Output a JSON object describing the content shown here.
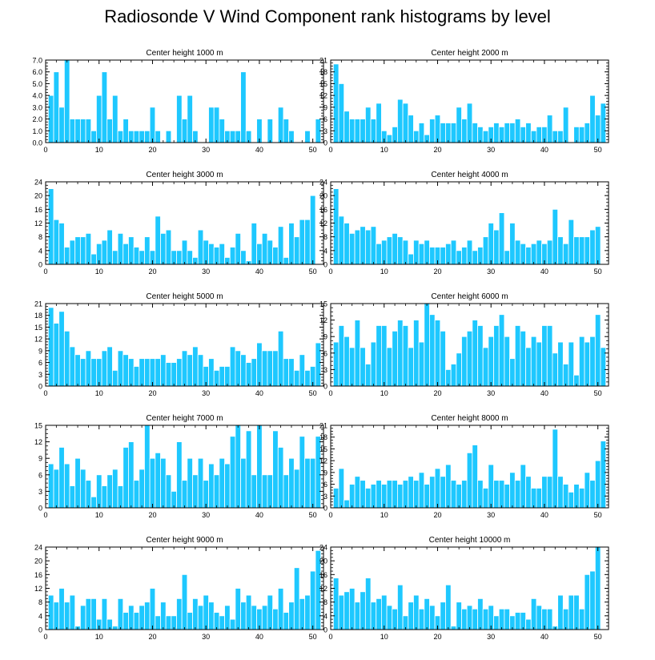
{
  "title": "Radiosonde V Wind Component rank histograms by level",
  "colors": {
    "bar": "#1ec8ff",
    "bar_edge": "#ffffff",
    "axis": "#000000"
  },
  "chart_data": [
    {
      "type": "bar",
      "title": "Center height 1000 m",
      "x": [
        1,
        2,
        3,
        4,
        5,
        6,
        7,
        8,
        9,
        10,
        11,
        12,
        13,
        14,
        15,
        16,
        17,
        18,
        19,
        20,
        21,
        22,
        23,
        24,
        25,
        26,
        27,
        28,
        29,
        30,
        31,
        32,
        33,
        34,
        35,
        36,
        37,
        38,
        39,
        40,
        41,
        42,
        43,
        44,
        45,
        46,
        47,
        48,
        49,
        50,
        51
      ],
      "values": [
        4,
        6,
        3,
        7,
        2,
        2,
        2,
        2,
        1,
        4,
        6,
        2,
        4,
        1,
        2,
        1,
        1,
        1,
        1,
        3,
        1,
        0,
        1,
        0,
        4,
        2,
        4,
        1,
        0,
        0,
        3,
        3,
        2,
        1,
        1,
        1,
        6,
        1,
        0,
        2,
        0,
        2,
        0,
        3,
        2,
        1,
        0,
        0,
        1,
        0,
        2
      ],
      "xlim": [
        0,
        52
      ],
      "ylim": [
        0,
        7
      ],
      "yticks": [
        0,
        1,
        2,
        3,
        4,
        5,
        6,
        7
      ],
      "ytick_labels": [
        "0.0",
        "1.0",
        "2.0",
        "3.0",
        "4.0",
        "5.0",
        "6.0",
        "7.0"
      ],
      "xticks": [
        0,
        10,
        20,
        30,
        40,
        50
      ],
      "xtick_labels": [
        "0",
        "10",
        "20",
        "30",
        "40",
        "50"
      ]
    },
    {
      "type": "bar",
      "title": "Center height 2000 m",
      "x": [
        1,
        2,
        3,
        4,
        5,
        6,
        7,
        8,
        9,
        10,
        11,
        12,
        13,
        14,
        15,
        16,
        17,
        18,
        19,
        20,
        21,
        22,
        23,
        24,
        25,
        26,
        27,
        28,
        29,
        30,
        31,
        32,
        33,
        34,
        35,
        36,
        37,
        38,
        39,
        40,
        41,
        42,
        43,
        44,
        45,
        46,
        47,
        48,
        49,
        50,
        51
      ],
      "values": [
        20,
        15,
        8,
        6,
        6,
        6,
        9,
        6,
        10,
        3,
        2,
        4,
        11,
        10,
        7,
        3,
        5,
        2,
        6,
        7,
        5,
        5,
        5,
        9,
        6,
        10,
        5,
        4,
        3,
        4,
        5,
        4,
        5,
        5,
        6,
        4,
        5,
        3,
        4,
        4,
        7,
        3,
        3,
        9,
        0,
        4,
        4,
        5,
        12,
        7,
        10
      ],
      "xlim": [
        0,
        52
      ],
      "ylim": [
        0,
        21
      ],
      "yticks": [
        0,
        3,
        6,
        9,
        12,
        15,
        18,
        21
      ],
      "ytick_labels": [
        "0",
        "3",
        "6",
        "9",
        "12",
        "15",
        "18",
        "21"
      ],
      "xticks": [
        0,
        10,
        20,
        30,
        40,
        50
      ],
      "xtick_labels": [
        "0",
        "10",
        "20",
        "30",
        "40",
        "50"
      ]
    },
    {
      "type": "bar",
      "title": "Center height 3000 m",
      "x": [
        1,
        2,
        3,
        4,
        5,
        6,
        7,
        8,
        9,
        10,
        11,
        12,
        13,
        14,
        15,
        16,
        17,
        18,
        19,
        20,
        21,
        22,
        23,
        24,
        25,
        26,
        27,
        28,
        29,
        30,
        31,
        32,
        33,
        34,
        35,
        36,
        37,
        38,
        39,
        40,
        41,
        42,
        43,
        44,
        45,
        46,
        47,
        48,
        49,
        50,
        51
      ],
      "values": [
        22,
        13,
        12,
        5,
        7,
        8,
        8,
        9,
        3,
        6,
        7,
        10,
        4,
        9,
        6,
        8,
        5,
        4,
        8,
        4,
        14,
        9,
        10,
        4,
        4,
        7,
        4,
        2,
        10,
        7,
        6,
        5,
        6,
        2,
        5,
        9,
        4,
        1,
        12,
        6,
        9,
        7,
        5,
        11,
        2,
        12,
        8,
        13,
        13,
        20,
        0
      ],
      "xlim": [
        0,
        52
      ],
      "ylim": [
        0,
        24
      ],
      "yticks": [
        0,
        4,
        8,
        12,
        16,
        20,
        24
      ],
      "ytick_labels": [
        "0",
        "4",
        "8",
        "12",
        "16",
        "20",
        "24"
      ],
      "xticks": [
        0,
        10,
        20,
        30,
        40,
        50
      ],
      "xtick_labels": [
        "0",
        "10",
        "20",
        "30",
        "40",
        "50"
      ]
    },
    {
      "type": "bar",
      "title": "Center height 4000 m",
      "x": [
        1,
        2,
        3,
        4,
        5,
        6,
        7,
        8,
        9,
        10,
        11,
        12,
        13,
        14,
        15,
        16,
        17,
        18,
        19,
        20,
        21,
        22,
        23,
        24,
        25,
        26,
        27,
        28,
        29,
        30,
        31,
        32,
        33,
        34,
        35,
        36,
        37,
        38,
        39,
        40,
        41,
        42,
        43,
        44,
        45,
        46,
        47,
        48,
        49,
        50,
        51
      ],
      "values": [
        22,
        14,
        12,
        9,
        10,
        11,
        10,
        11,
        6,
        7,
        8,
        9,
        8,
        7,
        3,
        7,
        6,
        7,
        5,
        5,
        5,
        6,
        7,
        4,
        5,
        7,
        4,
        5,
        8,
        12,
        10,
        15,
        4,
        12,
        7,
        6,
        5,
        6,
        7,
        6,
        7,
        16,
        8,
        6,
        13,
        8,
        8,
        8,
        10,
        11,
        0
      ],
      "xlim": [
        0,
        52
      ],
      "ylim": [
        0,
        24
      ],
      "yticks": [
        0,
        4,
        8,
        12,
        16,
        20,
        24
      ],
      "ytick_labels": [
        "0",
        "4",
        "8",
        "12",
        "16",
        "20",
        "24"
      ],
      "xticks": [
        0,
        10,
        20,
        30,
        40,
        50
      ],
      "xtick_labels": [
        "0",
        "10",
        "20",
        "30",
        "40",
        "50"
      ]
    },
    {
      "type": "bar",
      "title": "Center height 5000 m",
      "x": [
        1,
        2,
        3,
        4,
        5,
        6,
        7,
        8,
        9,
        10,
        11,
        12,
        13,
        14,
        15,
        16,
        17,
        18,
        19,
        20,
        21,
        22,
        23,
        24,
        25,
        26,
        27,
        28,
        29,
        30,
        31,
        32,
        33,
        34,
        35,
        36,
        37,
        38,
        39,
        40,
        41,
        42,
        43,
        44,
        45,
        46,
        47,
        48,
        49,
        50,
        51
      ],
      "values": [
        20,
        16,
        19,
        14,
        10,
        8,
        7,
        9,
        7,
        7,
        9,
        10,
        4,
        9,
        8,
        7,
        5,
        7,
        7,
        7,
        7,
        8,
        6,
        6,
        7,
        9,
        8,
        10,
        8,
        5,
        7,
        4,
        5,
        5,
        10,
        9,
        8,
        6,
        7,
        11,
        9,
        9,
        9,
        14,
        7,
        7,
        4,
        8,
        4,
        5,
        11
      ],
      "xlim": [
        0,
        52
      ],
      "ylim": [
        0,
        21
      ],
      "yticks": [
        0,
        3,
        6,
        9,
        12,
        15,
        18,
        21
      ],
      "ytick_labels": [
        "0",
        "3",
        "6",
        "9",
        "12",
        "15",
        "18",
        "21"
      ],
      "xticks": [
        0,
        10,
        20,
        30,
        40,
        50
      ],
      "xtick_labels": [
        "0",
        "10",
        "20",
        "30",
        "40",
        "50"
      ]
    },
    {
      "type": "bar",
      "title": "Center height 6000 m",
      "x": [
        1,
        2,
        3,
        4,
        5,
        6,
        7,
        8,
        9,
        10,
        11,
        12,
        13,
        14,
        15,
        16,
        17,
        18,
        19,
        20,
        21,
        22,
        23,
        24,
        25,
        26,
        27,
        28,
        29,
        30,
        31,
        32,
        33,
        34,
        35,
        36,
        37,
        38,
        39,
        40,
        41,
        42,
        43,
        44,
        45,
        46,
        47,
        48,
        49,
        50,
        51
      ],
      "values": [
        8,
        11,
        9,
        7,
        12,
        7,
        4,
        8,
        11,
        11,
        7,
        10,
        12,
        11,
        7,
        12,
        8,
        15,
        13,
        12,
        10,
        3,
        4,
        6,
        9,
        10,
        12,
        11,
        7,
        9,
        11,
        13,
        9,
        5,
        11,
        10,
        7,
        9,
        8,
        11,
        11,
        6,
        8,
        4,
        8,
        2,
        9,
        8,
        9,
        13,
        7
      ],
      "xlim": [
        0,
        52
      ],
      "ylim": [
        0,
        15
      ],
      "yticks": [
        0,
        3,
        6,
        9,
        12,
        15
      ],
      "ytick_labels": [
        "0",
        "3",
        "6",
        "9",
        "12",
        "15"
      ],
      "xticks": [
        0,
        10,
        20,
        30,
        40,
        50
      ],
      "xtick_labels": [
        "0",
        "10",
        "20",
        "30",
        "40",
        "50"
      ]
    },
    {
      "type": "bar",
      "title": "Center height 7000 m",
      "x": [
        1,
        2,
        3,
        4,
        5,
        6,
        7,
        8,
        9,
        10,
        11,
        12,
        13,
        14,
        15,
        16,
        17,
        18,
        19,
        20,
        21,
        22,
        23,
        24,
        25,
        26,
        27,
        28,
        29,
        30,
        31,
        32,
        33,
        34,
        35,
        36,
        37,
        38,
        39,
        40,
        41,
        42,
        43,
        44,
        45,
        46,
        47,
        48,
        49,
        50,
        51
      ],
      "values": [
        8,
        7,
        11,
        8,
        4,
        9,
        7,
        5,
        2,
        6,
        4,
        6,
        7,
        4,
        11,
        12,
        5,
        7,
        15,
        9,
        10,
        9,
        6,
        3,
        12,
        5,
        9,
        6,
        9,
        5,
        8,
        6,
        9,
        8,
        13,
        15,
        9,
        14,
        6,
        15,
        6,
        6,
        14,
        11,
        6,
        9,
        7,
        13,
        9,
        9,
        13
      ],
      "xlim": [
        0,
        52
      ],
      "ylim": [
        0,
        15
      ],
      "yticks": [
        0,
        3,
        6,
        9,
        12,
        15
      ],
      "ytick_labels": [
        "0",
        "3",
        "6",
        "9",
        "12",
        "15"
      ],
      "xticks": [
        0,
        10,
        20,
        30,
        40,
        50
      ],
      "xtick_labels": [
        "0",
        "10",
        "20",
        "30",
        "40",
        "50"
      ]
    },
    {
      "type": "bar",
      "title": "Center height 8000 m",
      "x": [
        1,
        2,
        3,
        4,
        5,
        6,
        7,
        8,
        9,
        10,
        11,
        12,
        13,
        14,
        15,
        16,
        17,
        18,
        19,
        20,
        21,
        22,
        23,
        24,
        25,
        26,
        27,
        28,
        29,
        30,
        31,
        32,
        33,
        34,
        35,
        36,
        37,
        38,
        39,
        40,
        41,
        42,
        43,
        44,
        45,
        46,
        47,
        48,
        49,
        50,
        51
      ],
      "values": [
        5,
        10,
        2,
        6,
        8,
        7,
        5,
        6,
        7,
        6,
        7,
        7,
        6,
        7,
        8,
        7,
        9,
        6,
        8,
        10,
        8,
        11,
        7,
        6,
        7,
        14,
        16,
        7,
        5,
        11,
        7,
        7,
        6,
        9,
        7,
        11,
        8,
        5,
        5,
        8,
        8,
        20,
        8,
        6,
        4,
        6,
        5,
        9,
        7,
        12,
        17
      ],
      "xlim": [
        0,
        52
      ],
      "ylim": [
        0,
        21
      ],
      "yticks": [
        0,
        3,
        6,
        9,
        12,
        15,
        18,
        21
      ],
      "ytick_labels": [
        "0",
        "3",
        "6",
        "9",
        "12",
        "15",
        "18",
        "21"
      ],
      "xticks": [
        0,
        10,
        20,
        30,
        40,
        50
      ],
      "xtick_labels": [
        "0",
        "10",
        "20",
        "30",
        "40",
        "50"
      ]
    },
    {
      "type": "bar",
      "title": "Center height 9000 m",
      "x": [
        1,
        2,
        3,
        4,
        5,
        6,
        7,
        8,
        9,
        10,
        11,
        12,
        13,
        14,
        15,
        16,
        17,
        18,
        19,
        20,
        21,
        22,
        23,
        24,
        25,
        26,
        27,
        28,
        29,
        30,
        31,
        32,
        33,
        34,
        35,
        36,
        37,
        38,
        39,
        40,
        41,
        42,
        43,
        44,
        45,
        46,
        47,
        48,
        49,
        50,
        51
      ],
      "values": [
        10,
        8,
        12,
        8,
        10,
        1,
        7,
        9,
        9,
        3,
        9,
        3,
        1,
        9,
        5,
        7,
        5,
        7,
        8,
        12,
        4,
        8,
        4,
        4,
        9,
        16,
        5,
        9,
        7,
        10,
        8,
        5,
        4,
        7,
        3,
        12,
        8,
        10,
        7,
        6,
        7,
        10,
        6,
        12,
        5,
        8,
        18,
        9,
        10,
        17,
        23
      ],
      "xlim": [
        0,
        52
      ],
      "ylim": [
        0,
        24
      ],
      "yticks": [
        0,
        4,
        8,
        12,
        16,
        20,
        24
      ],
      "ytick_labels": [
        "0",
        "4",
        "8",
        "12",
        "16",
        "20",
        "24"
      ],
      "xticks": [
        0,
        10,
        20,
        30,
        40,
        50
      ],
      "xtick_labels": [
        "0",
        "10",
        "20",
        "30",
        "40",
        "50"
      ]
    },
    {
      "type": "bar",
      "title": "Center height 10000 m",
      "x": [
        1,
        2,
        3,
        4,
        5,
        6,
        7,
        8,
        9,
        10,
        11,
        12,
        13,
        14,
        15,
        16,
        17,
        18,
        19,
        20,
        21,
        22,
        23,
        24,
        25,
        26,
        27,
        28,
        29,
        30,
        31,
        32,
        33,
        34,
        35,
        36,
        37,
        38,
        39,
        40,
        41,
        42,
        43,
        44,
        45,
        46,
        47,
        48,
        49,
        50,
        51
      ],
      "values": [
        15,
        10,
        11,
        12,
        8,
        11,
        15,
        8,
        9,
        10,
        7,
        6,
        13,
        4,
        8,
        10,
        6,
        9,
        7,
        4,
        8,
        13,
        1,
        8,
        6,
        7,
        6,
        9,
        6,
        7,
        4,
        6,
        6,
        4,
        5,
        5,
        3,
        9,
        7,
        6,
        6,
        1,
        10,
        6,
        10,
        10,
        6,
        16,
        17,
        24,
        0
      ],
      "xlim": [
        0,
        52
      ],
      "ylim": [
        0,
        24
      ],
      "yticks": [
        0,
        4,
        8,
        12,
        16,
        20,
        24
      ],
      "ytick_labels": [
        "0",
        "4",
        "8",
        "12",
        "16",
        "20",
        "24"
      ],
      "xticks": [
        0,
        10,
        20,
        30,
        40,
        50
      ],
      "xtick_labels": [
        "0",
        "10",
        "20",
        "30",
        "40",
        "50"
      ]
    }
  ]
}
